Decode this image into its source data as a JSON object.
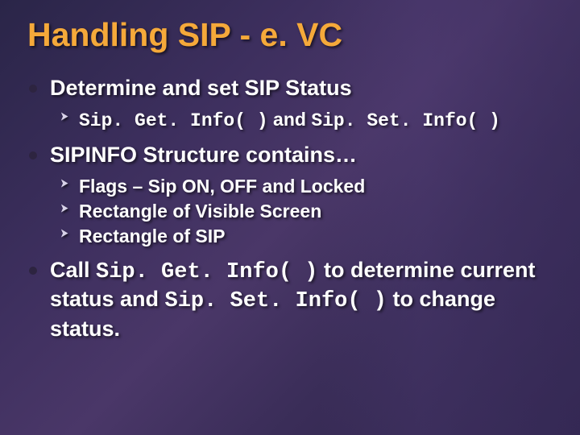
{
  "title": "Handling SIP - e. VC",
  "title_color": "#f5a93a",
  "text_color": "#ffffff",
  "background_colors": [
    "#2a2548",
    "#3d2f5e",
    "#4a3768",
    "#3a2d58",
    "#2d2449"
  ],
  "title_fontsize": 41,
  "bullet_fontsize": 27,
  "subbullet_fontsize": 23,
  "font_family": "Arial",
  "code_font_family": "Courier New",
  "bullets": [
    {
      "text": "Determine and set SIP Status",
      "sub": [
        {
          "segments": [
            {
              "text": "Sip. Get. Info( )",
              "code": true
            },
            {
              "text": " and ",
              "code": false
            },
            {
              "text": "Sip. Set. Info( )",
              "code": true
            }
          ]
        }
      ]
    },
    {
      "text": "SIPINFO Structure contains…",
      "sub": [
        {
          "segments": [
            {
              "text": "Flags – Sip ON, OFF and Locked",
              "code": false
            }
          ]
        },
        {
          "segments": [
            {
              "text": "Rectangle of Visible Screen",
              "code": false
            }
          ]
        },
        {
          "segments": [
            {
              "text": "Rectangle of SIP",
              "code": false
            }
          ]
        }
      ]
    },
    {
      "segments": [
        {
          "text": "Call ",
          "code": false
        },
        {
          "text": "Sip. Get. Info( )",
          "code": true
        },
        {
          "text": " to determine current status and ",
          "code": false
        },
        {
          "text": "Sip. Set. Info( )",
          "code": true
        },
        {
          "text": " to change status.",
          "code": false
        }
      ]
    }
  ]
}
